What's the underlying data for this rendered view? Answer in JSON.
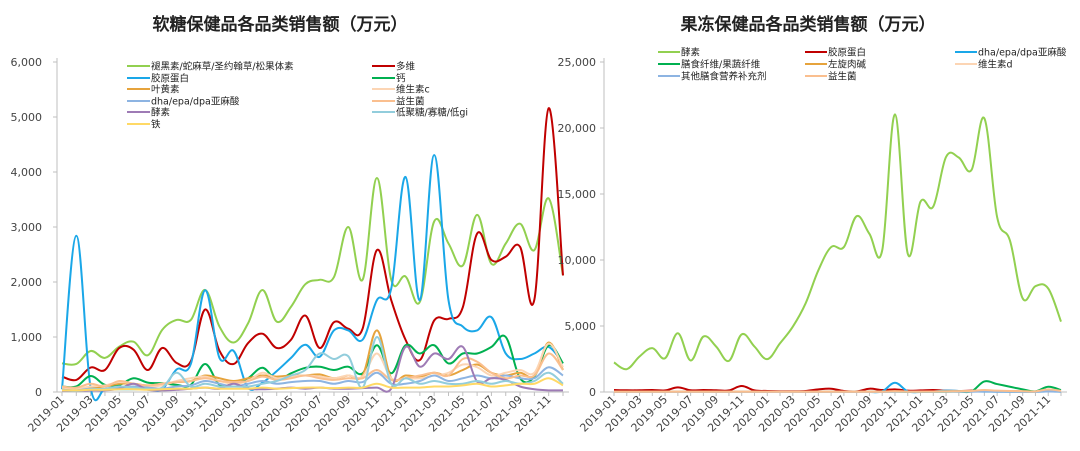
{
  "chart_data": [
    {
      "type": "line",
      "title": "软糖保健品各品类销售额（万元）",
      "xlabel": "",
      "ylabel": "",
      "ylim": [
        0,
        6000
      ],
      "yticks": [
        "0",
        "1,000",
        "2,000",
        "3,000",
        "4,000",
        "5,000",
        "6,000"
      ],
      "xtick_labels": [
        "2019-01",
        "2019-03",
        "2019-05",
        "2019-07",
        "2019-09",
        "2019-11",
        "2020-01",
        "2020-03",
        "2020-05",
        "2020-07",
        "2020-09",
        "2020-11",
        "2021-01",
        "2021-03",
        "2021-05",
        "2021-07",
        "2021-09",
        "2021-11"
      ],
      "categories": [
        "2019-01",
        "2019-02",
        "2019-03",
        "2019-04",
        "2019-05",
        "2019-06",
        "2019-07",
        "2019-08",
        "2019-09",
        "2019-10",
        "2019-11",
        "2019-12",
        "2020-01",
        "2020-02",
        "2020-03",
        "2020-04",
        "2020-05",
        "2020-06",
        "2020-07",
        "2020-08",
        "2020-09",
        "2020-10",
        "2020-11",
        "2020-12",
        "2021-01",
        "2021-02",
        "2021-03",
        "2021-04",
        "2021-05",
        "2021-06",
        "2021-07",
        "2021-08",
        "2021-09",
        "2021-10",
        "2021-11",
        "2021-12"
      ],
      "grid": false,
      "legend": "top",
      "series": [
        {
          "name": "褪黑素/蛇麻草/圣约翰草/松果体素",
          "color": "#92d050",
          "values": [
            520,
            510,
            745,
            620,
            825,
            915,
            670,
            1130,
            1310,
            1310,
            1855,
            1190,
            900,
            1250,
            1855,
            1280,
            1550,
            1960,
            2040,
            2090,
            3000,
            2040,
            3890,
            2040,
            2100,
            1640,
            3100,
            2700,
            2300,
            3220,
            2330,
            2700,
            3060,
            2580,
            3520,
            2120
          ]
        },
        {
          "name": "多维",
          "color": "#c00000",
          "values": [
            280,
            220,
            445,
            400,
            800,
            770,
            400,
            800,
            530,
            560,
            1500,
            750,
            510,
            890,
            1060,
            800,
            950,
            1390,
            800,
            1270,
            1150,
            1150,
            2580,
            1670,
            950,
            580,
            1300,
            1330,
            1540,
            2880,
            2400,
            2460,
            2640,
            1680,
            5160,
            2120
          ]
        },
        {
          "name": "胶原蛋白",
          "color": "#1aa7e8",
          "values": [
            50,
            2840,
            80,
            50,
            50,
            50,
            50,
            50,
            410,
            510,
            1850,
            620,
            745,
            75,
            170,
            380,
            620,
            860,
            640,
            1120,
            1120,
            950,
            1670,
            1880,
            3910,
            1670,
            4310,
            1670,
            1190,
            1120,
            1360,
            700,
            600,
            700,
            820,
            520
          ]
        },
        {
          "name": "钙",
          "color": "#00b050",
          "values": [
            100,
            100,
            290,
            130,
            130,
            250,
            170,
            160,
            130,
            130,
            510,
            130,
            160,
            250,
            440,
            220,
            340,
            440,
            460,
            400,
            460,
            340,
            850,
            340,
            850,
            700,
            850,
            520,
            700,
            700,
            820,
            1000,
            250,
            280,
            850,
            520
          ]
        },
        {
          "name": "叶黄素",
          "color": "#e6a33c",
          "values": [
            60,
            50,
            80,
            100,
            150,
            150,
            120,
            150,
            180,
            200,
            300,
            250,
            200,
            250,
            300,
            280,
            300,
            300,
            320,
            250,
            300,
            300,
            1120,
            250,
            300,
            280,
            350,
            300,
            400,
            500,
            350,
            300,
            350,
            300,
            900,
            400
          ]
        },
        {
          "name": "维生素c",
          "color": "#fcd5b4",
          "values": [
            80,
            60,
            100,
            120,
            180,
            150,
            100,
            120,
            200,
            250,
            280,
            200,
            150,
            200,
            350,
            250,
            280,
            300,
            280,
            250,
            300,
            280,
            700,
            250,
            250,
            250,
            300,
            350,
            500,
            450,
            300,
            350,
            400,
            350,
            880,
            450
          ]
        },
        {
          "name": "dha/epa/dpa亚麻酸",
          "color": "#8db4e2",
          "values": [
            40,
            30,
            60,
            50,
            80,
            100,
            80,
            60,
            100,
            120,
            200,
            150,
            100,
            150,
            200,
            150,
            180,
            200,
            200,
            150,
            200,
            180,
            350,
            150,
            150,
            200,
            300,
            200,
            250,
            300,
            250,
            300,
            250,
            250,
            450,
            300
          ]
        },
        {
          "name": "益生菌",
          "color": "#fabf8f",
          "values": [
            100,
            80,
            150,
            100,
            200,
            150,
            120,
            150,
            180,
            200,
            250,
            200,
            180,
            200,
            280,
            220,
            250,
            300,
            250,
            220,
            250,
            250,
            400,
            220,
            250,
            300,
            350,
            300,
            600,
            550,
            350,
            250,
            300,
            300,
            700,
            400
          ]
        },
        {
          "name": "酵素",
          "color": "#9e7bb5",
          "values": [
            20,
            20,
            30,
            30,
            60,
            150,
            40,
            30,
            40,
            60,
            80,
            60,
            150,
            60,
            50,
            60,
            80,
            60,
            80,
            60,
            60,
            70,
            80,
            60,
            820,
            460,
            700,
            600,
            820,
            190,
            250,
            220,
            100,
            50,
            30,
            30
          ]
        },
        {
          "name": "低聚糖/寡糖/低gi",
          "color": "#92cddc",
          "values": [
            30,
            20,
            50,
            60,
            100,
            80,
            60,
            80,
            350,
            100,
            150,
            100,
            100,
            100,
            150,
            200,
            300,
            400,
            700,
            600,
            650,
            80,
            1000,
            150,
            250,
            150,
            200,
            150,
            150,
            200,
            150,
            200,
            150,
            200,
            350,
            150
          ]
        },
        {
          "name": "铁",
          "color": "#ffd966",
          "values": [
            30,
            30,
            40,
            40,
            50,
            50,
            40,
            50,
            60,
            60,
            80,
            60,
            60,
            60,
            80,
            60,
            70,
            80,
            80,
            70,
            80,
            80,
            150,
            80,
            80,
            80,
            100,
            100,
            120,
            150,
            100,
            120,
            150,
            150,
            250,
            120
          ]
        }
      ]
    },
    {
      "type": "line",
      "title": "果冻保健品各品类销售额（万元）",
      "xlabel": "",
      "ylabel": "",
      "ylim": [
        0,
        25000
      ],
      "yticks": [
        "0",
        "5,000",
        "10,000",
        "15,000",
        "20,000",
        "25,000"
      ],
      "xtick_labels": [
        "2019-01",
        "2019-03",
        "2019-05",
        "2019-07",
        "2019-09",
        "2019-11",
        "2020-01",
        "2020-03",
        "2020-05",
        "2020-07",
        "2020-09",
        "2020-11",
        "2021-01",
        "2021-03",
        "2021-05",
        "2021-07",
        "2021-09",
        "2021-11"
      ],
      "categories": [
        "2019-01",
        "2019-02",
        "2019-03",
        "2019-04",
        "2019-05",
        "2019-06",
        "2019-07",
        "2019-08",
        "2019-09",
        "2019-10",
        "2019-11",
        "2019-12",
        "2020-01",
        "2020-02",
        "2020-03",
        "2020-04",
        "2020-05",
        "2020-06",
        "2020-07",
        "2020-08",
        "2020-09",
        "2020-10",
        "2020-11",
        "2020-12",
        "2021-01",
        "2021-02",
        "2021-03",
        "2021-04",
        "2021-05",
        "2021-06",
        "2021-07",
        "2021-08",
        "2021-09",
        "2021-10",
        "2021-11",
        "2021-12"
      ],
      "grid": false,
      "legend": "top",
      "series": [
        {
          "name": "酵素",
          "color": "#92d050",
          "values": [
            2240,
            1730,
            2690,
            3320,
            2560,
            4450,
            2390,
            4200,
            3440,
            2360,
            4370,
            3440,
            2490,
            3690,
            4950,
            6710,
            9220,
            10980,
            10980,
            13320,
            11980,
            10730,
            21030,
            10480,
            14420,
            14050,
            17810,
            17760,
            16830,
            20730,
            13240,
            11480,
            7090,
            8020,
            7840,
            5330
          ]
        },
        {
          "name": "胶原蛋白",
          "color": "#c00000",
          "values": [
            150,
            130,
            130,
            150,
            120,
            350,
            130,
            150,
            130,
            120,
            450,
            120,
            80,
            60,
            60,
            80,
            200,
            250,
            80,
            50,
            250,
            150,
            200,
            100,
            120,
            150,
            100,
            80,
            100,
            80,
            60,
            50,
            40,
            40,
            150,
            80
          ]
        },
        {
          "name": "dha/epa/dpa亚麻酸",
          "color": "#1aa7e8",
          "values": [
            0,
            0,
            0,
            0,
            0,
            0,
            0,
            0,
            0,
            0,
            0,
            0,
            0,
            0,
            0,
            0,
            0,
            0,
            0,
            0,
            0,
            50,
            700,
            50,
            0,
            30,
            100,
            80,
            50,
            30,
            20,
            10,
            10,
            10,
            50,
            20
          ]
        },
        {
          "name": "膳食纤维/果蔬纤维",
          "color": "#00b050",
          "values": [
            0,
            0,
            0,
            0,
            0,
            0,
            0,
            0,
            0,
            0,
            0,
            0,
            0,
            0,
            0,
            0,
            0,
            0,
            0,
            20,
            10,
            10,
            30,
            10,
            10,
            10,
            20,
            30,
            50,
            800,
            600,
            400,
            200,
            50,
            400,
            150
          ]
        },
        {
          "name": "左旋肉碱",
          "color": "#e6a33c",
          "values": [
            30,
            30,
            30,
            30,
            30,
            30,
            30,
            30,
            30,
            30,
            30,
            30,
            30,
            30,
            30,
            30,
            30,
            30,
            30,
            30,
            30,
            30,
            60,
            40,
            40,
            40,
            50,
            60,
            80,
            100,
            80,
            60,
            50,
            40,
            120,
            60
          ]
        },
        {
          "name": "维生素d",
          "color": "#fcd5b4",
          "values": [
            10,
            10,
            10,
            10,
            10,
            10,
            10,
            10,
            10,
            10,
            10,
            10,
            10,
            10,
            10,
            10,
            10,
            10,
            10,
            10,
            10,
            10,
            20,
            20,
            20,
            20,
            30,
            30,
            40,
            50,
            40,
            30,
            30,
            20,
            60,
            30
          ]
        },
        {
          "name": "其他膳食营养补充剂",
          "color": "#8db4e2",
          "values": [
            10,
            10,
            10,
            10,
            10,
            10,
            10,
            10,
            10,
            10,
            10,
            10,
            10,
            10,
            10,
            10,
            10,
            10,
            10,
            10,
            10,
            10,
            30,
            20,
            20,
            20,
            30,
            20,
            20,
            30,
            20,
            20,
            20,
            20,
            40,
            20
          ]
        },
        {
          "name": "益生菌",
          "color": "#fabf8f",
          "values": [
            20,
            20,
            20,
            20,
            20,
            20,
            20,
            20,
            20,
            20,
            20,
            20,
            20,
            20,
            20,
            20,
            20,
            20,
            20,
            20,
            20,
            20,
            60,
            30,
            30,
            40,
            50,
            60,
            80,
            150,
            100,
            80,
            60,
            50,
            200,
            80
          ]
        }
      ]
    }
  ]
}
